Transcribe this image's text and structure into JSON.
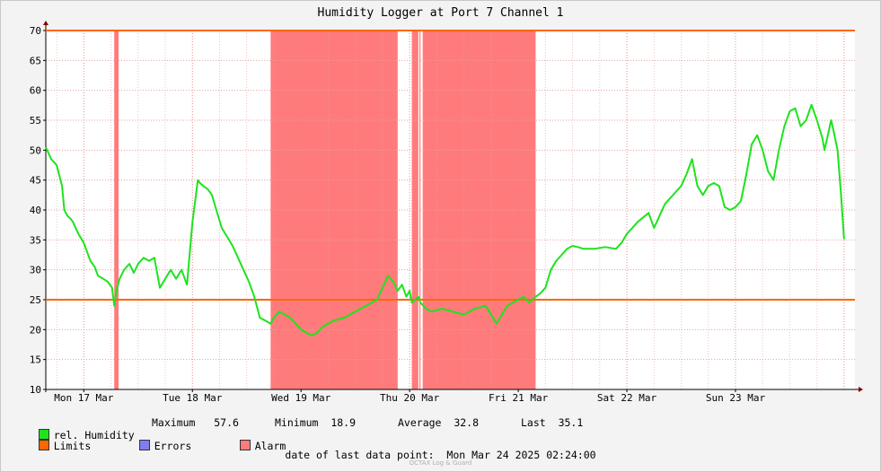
{
  "colors": {
    "humidity": "#1ee31e",
    "limits": "#ff6600",
    "errors": "#7e7ef0",
    "alarm": "#ff7b7b",
    "bg": "#f3f3f3",
    "grid": "#e5a0a0"
  },
  "chart_data": {
    "type": "line",
    "title": "Humidity Logger at Port 7 Channel 1",
    "x_unit": "days since Mon 17 Mar 00:00",
    "xlim": [
      -0.35,
      7.1
    ],
    "ylim": [
      10,
      70
    ],
    "yticks": [
      10,
      15,
      20,
      25,
      30,
      35,
      40,
      45,
      50,
      55,
      60,
      65,
      70
    ],
    "xticks": [
      {
        "label": "Mon 17 Mar",
        "x": 0
      },
      {
        "label": "Tue 18 Mar",
        "x": 1
      },
      {
        "label": "Wed 19 Mar",
        "x": 2
      },
      {
        "label": "Thu 20 Mar",
        "x": 3
      },
      {
        "label": "Fri 21 Mar",
        "x": 4
      },
      {
        "label": "Sat 22 Mar",
        "x": 5
      },
      {
        "label": "Sun 23 Mar",
        "x": 6
      }
    ],
    "limits": [
      25,
      70
    ],
    "alarm_ranges": [
      [
        0.28,
        0.32
      ],
      [
        1.72,
        2.89
      ],
      [
        3.02,
        3.08
      ],
      [
        3.09,
        3.1
      ],
      [
        3.12,
        4.16
      ]
    ],
    "series": [
      {
        "name": "rel. Humidity",
        "x": [
          -0.35,
          -0.3,
          -0.25,
          -0.2,
          -0.18,
          -0.15,
          -0.12,
          -0.1,
          -0.05,
          0.0,
          0.03,
          0.06,
          0.1,
          0.13,
          0.18,
          0.22,
          0.26,
          0.28,
          0.3,
          0.33,
          0.37,
          0.42,
          0.46,
          0.5,
          0.55,
          0.6,
          0.65,
          0.7,
          0.75,
          0.8,
          0.85,
          0.9,
          0.95,
          1.0,
          1.05,
          1.07,
          1.1,
          1.14,
          1.18,
          1.22,
          1.27,
          1.32,
          1.37,
          1.42,
          1.47,
          1.52,
          1.57,
          1.62,
          1.67,
          1.72,
          1.75,
          1.8,
          1.85,
          1.9,
          1.95,
          2.0,
          2.05,
          2.1,
          2.15,
          2.2,
          2.25,
          2.3,
          2.4,
          2.5,
          2.6,
          2.7,
          2.8,
          2.85,
          2.89,
          2.93,
          2.97,
          3.0,
          3.02,
          3.05,
          3.08,
          3.1,
          3.15,
          3.2,
          3.3,
          3.4,
          3.5,
          3.6,
          3.7,
          3.8,
          3.85,
          3.9,
          3.95,
          4.0,
          4.05,
          4.1,
          4.16,
          4.2,
          4.25,
          4.3,
          4.35,
          4.4,
          4.45,
          4.5,
          4.55,
          4.6,
          4.7,
          4.8,
          4.9,
          4.95,
          5.0,
          5.05,
          5.1,
          5.2,
          5.25,
          5.3,
          5.35,
          5.4,
          5.45,
          5.5,
          5.55,
          5.6,
          5.65,
          5.7,
          5.75,
          5.8,
          5.85,
          5.9,
          5.95,
          6.0,
          6.05,
          6.1,
          6.15,
          6.2,
          6.25,
          6.3,
          6.35,
          6.4,
          6.45,
          6.5,
          6.55,
          6.6,
          6.65,
          6.7,
          6.75,
          6.8,
          6.82,
          6.85,
          6.88,
          6.9,
          6.94,
          6.97,
          7.0
        ],
        "y": [
          50.5,
          48.5,
          47.5,
          44.0,
          40.0,
          39.0,
          38.5,
          38.0,
          36.0,
          34.5,
          33.0,
          31.5,
          30.5,
          29.0,
          28.5,
          28.0,
          27.0,
          24.0,
          26.5,
          28.5,
          30.0,
          31.0,
          29.5,
          31.0,
          32.0,
          31.5,
          32.0,
          27.0,
          28.5,
          30.0,
          28.5,
          30.0,
          27.5,
          38.0,
          45.0,
          44.5,
          44.0,
          43.5,
          42.5,
          40.0,
          37.0,
          35.5,
          34.0,
          32.0,
          30.0,
          28.0,
          25.5,
          22.0,
          21.5,
          21.0,
          22.0,
          23.0,
          22.5,
          22.0,
          21.0,
          20.0,
          19.5,
          19.0,
          19.5,
          20.5,
          21.0,
          21.5,
          22.0,
          23.0,
          24.0,
          25.0,
          29.0,
          28.0,
          26.5,
          27.5,
          25.5,
          26.5,
          24.5,
          25.0,
          25.5,
          24.5,
          23.5,
          23.0,
          23.5,
          23.0,
          22.5,
          23.5,
          24.0,
          21.0,
          22.5,
          24.0,
          24.5,
          25.0,
          25.5,
          24.5,
          25.5,
          26.0,
          27.0,
          30.0,
          31.5,
          32.5,
          33.5,
          34.0,
          33.8,
          33.5,
          33.5,
          33.8,
          33.5,
          34.5,
          36.0,
          37.0,
          38.0,
          39.5,
          37.0,
          39.0,
          41.0,
          42.0,
          43.0,
          44.0,
          46.0,
          48.5,
          44.0,
          42.5,
          44.0,
          44.5,
          44.0,
          40.5,
          40.0,
          40.5,
          41.5,
          46.0,
          51.0,
          52.5,
          50.0,
          46.5,
          45.0,
          50.0,
          54.0,
          56.5,
          57.0,
          54.0,
          55.0,
          57.6,
          55.0,
          52.0,
          50.0,
          52.5,
          55.0,
          53.5,
          50.0,
          43.0,
          35.1
        ]
      }
    ],
    "legend": [
      {
        "label": "rel. Humidity",
        "color": "#1ee31e"
      },
      {
        "label": "Limits",
        "color": "#ff6600"
      },
      {
        "label": "Errors",
        "color": "#7e7ef0"
      },
      {
        "label": "Alarm",
        "color": "#ff7b7b"
      }
    ],
    "stats": [
      {
        "label": "Maximum",
        "value": "57.6"
      },
      {
        "label": "Minimum",
        "value": "18.9"
      },
      {
        "label": "Average",
        "value": "32.8"
      },
      {
        "label": "Last",
        "value": "35.1"
      }
    ]
  },
  "footer": {
    "last_point_label": "date of last data point:",
    "last_point_value": "Mon Mar 24 2025 02:24:00",
    "credit": "OCTAX Log & Guard"
  }
}
